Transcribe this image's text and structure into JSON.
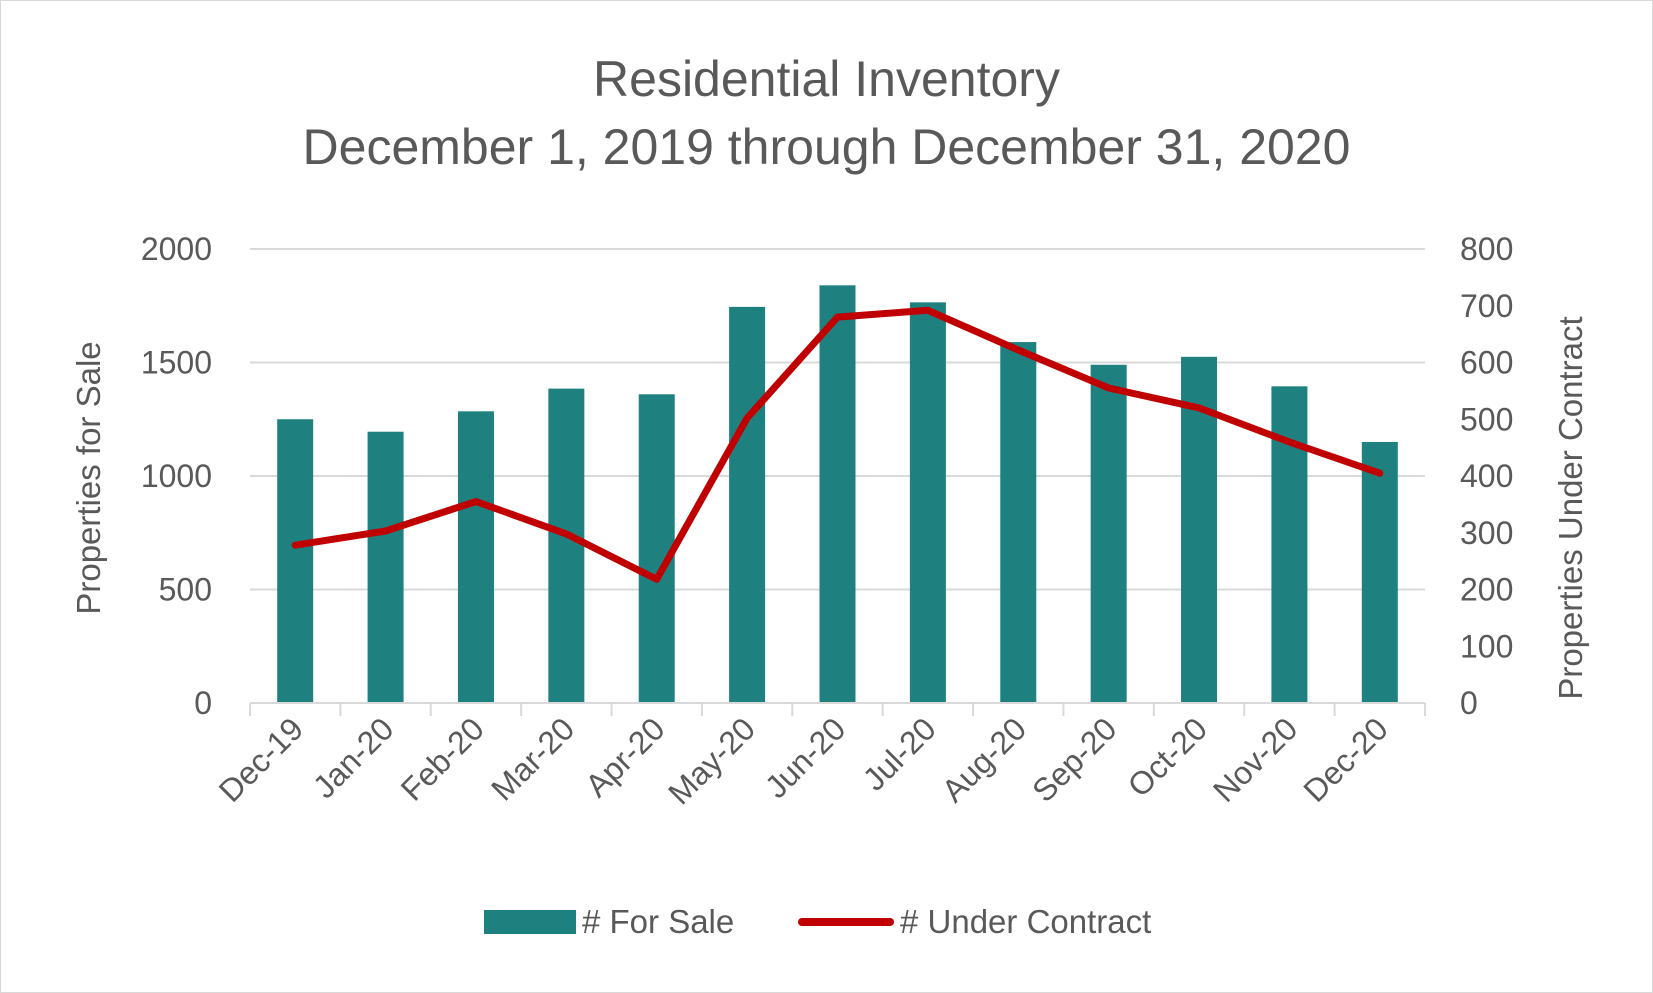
{
  "title_line1": "Residential Inventory",
  "title_line2": "December 1, 2019 through December 31, 2020",
  "colors": {
    "bar": "#1f8080",
    "line": "#c00000",
    "grid": "#d9d9d9",
    "text": "#595959"
  },
  "chart_data": {
    "type": "bar",
    "title": "Residential Inventory December 1, 2019 through December 31, 2020",
    "categories": [
      "Dec-19",
      "Jan-20",
      "Feb-20",
      "Mar-20",
      "Apr-20",
      "May-20",
      "Jun-20",
      "Jul-20",
      "Aug-20",
      "Sep-20",
      "Oct-20",
      "Nov-20",
      "Dec-20"
    ],
    "series": [
      {
        "name": "# For Sale",
        "type": "bar",
        "axis": "left",
        "values": [
          1250,
          1195,
          1285,
          1385,
          1360,
          1745,
          1840,
          1765,
          1590,
          1490,
          1525,
          1395,
          1150
        ]
      },
      {
        "name": "# Under Contract",
        "type": "line",
        "axis": "right",
        "values": [
          278,
          303,
          355,
          298,
          218,
          502,
          680,
          692,
          622,
          555,
          520,
          460,
          405
        ]
      }
    ],
    "ylabel": "Properties for Sale",
    "y2label": "Properties Under Contract",
    "ylim": [
      0,
      2000
    ],
    "y2lim": [
      0,
      800
    ],
    "yticks": [
      "0",
      "500",
      "1000",
      "1500",
      "2000"
    ],
    "y2ticks": [
      "0",
      "100",
      "200",
      "300",
      "400",
      "500",
      "600",
      "700",
      "800"
    ],
    "grid": true,
    "legend": "bottom"
  }
}
